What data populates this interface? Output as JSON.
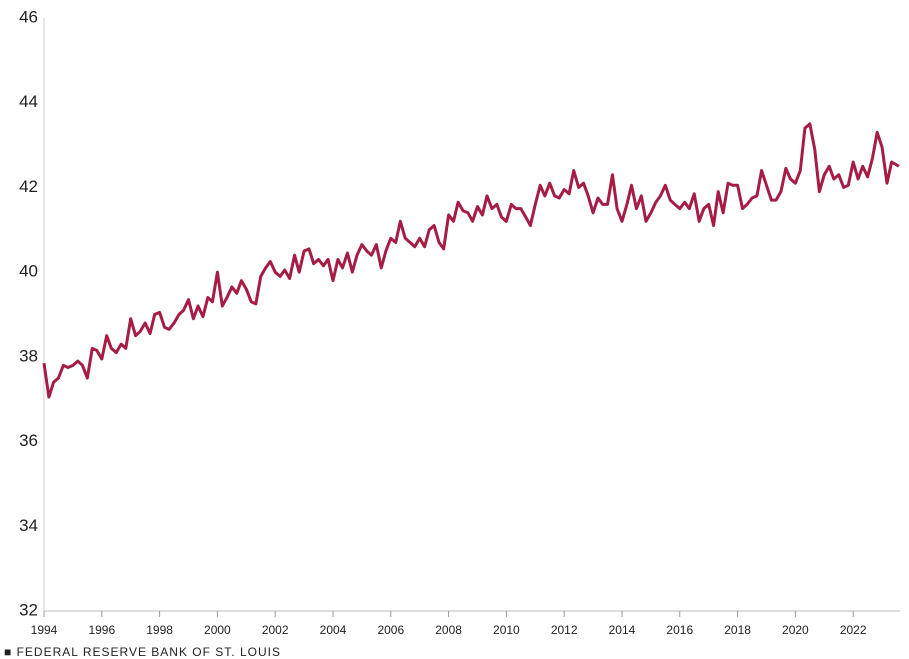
{
  "chart_data": {
    "type": "line",
    "source": "■ FEDERAL RESERVE BANK OF ST. LOUIS",
    "xlim": [
      1994,
      2023.62
    ],
    "xticks": [
      1994,
      1996,
      1998,
      2000,
      2002,
      2004,
      2006,
      2008,
      2010,
      2012,
      2014,
      2016,
      2018,
      2020,
      2022
    ],
    "ylim": [
      32,
      46
    ],
    "yticks": [
      32,
      34,
      36,
      38,
      40,
      42,
      44,
      46
    ],
    "grid": false,
    "series": [
      {
        "color": "#a51c45",
        "x": [
          1994,
          1994.17,
          1994.33,
          1994.5,
          1994.67,
          1994.83,
          1995,
          1995.17,
          1995.33,
          1995.5,
          1995.67,
          1995.83,
          1996,
          1996.17,
          1996.33,
          1996.5,
          1996.67,
          1996.83,
          1997,
          1997.17,
          1997.33,
          1997.5,
          1997.67,
          1997.83,
          1998,
          1998.17,
          1998.33,
          1998.5,
          1998.67,
          1998.83,
          1999,
          1999.17,
          1999.33,
          1999.5,
          1999.67,
          1999.83,
          2000,
          2000.17,
          2000.33,
          2000.5,
          2000.67,
          2000.83,
          2001,
          2001.17,
          2001.33,
          2001.5,
          2001.67,
          2001.83,
          2002,
          2002.17,
          2002.33,
          2002.5,
          2002.67,
          2002.83,
          2003,
          2003.17,
          2003.33,
          2003.5,
          2003.67,
          2003.83,
          2004,
          2004.17,
          2004.33,
          2004.5,
          2004.67,
          2004.83,
          2005,
          2005.17,
          2005.33,
          2005.5,
          2005.67,
          2005.83,
          2006,
          2006.17,
          2006.33,
          2006.5,
          2006.67,
          2006.83,
          2007,
          2007.17,
          2007.33,
          2007.5,
          2007.67,
          2007.83,
          2008,
          2008.17,
          2008.33,
          2008.5,
          2008.67,
          2008.83,
          2009,
          2009.17,
          2009.33,
          2009.5,
          2009.67,
          2009.83,
          2010,
          2010.17,
          2010.33,
          2010.5,
          2010.67,
          2010.83,
          2011,
          2011.17,
          2011.33,
          2011.5,
          2011.67,
          2011.83,
          2012,
          2012.17,
          2012.33,
          2012.5,
          2012.67,
          2012.83,
          2013,
          2013.17,
          2013.33,
          2013.5,
          2013.67,
          2013.83,
          2014,
          2014.17,
          2014.33,
          2014.5,
          2014.67,
          2014.83,
          2015,
          2015.17,
          2015.33,
          2015.5,
          2015.67,
          2015.83,
          2016,
          2016.17,
          2016.33,
          2016.5,
          2016.67,
          2016.83,
          2017,
          2017.17,
          2017.33,
          2017.5,
          2017.67,
          2017.83,
          2018,
          2018.17,
          2018.33,
          2018.5,
          2018.67,
          2018.83,
          2019,
          2019.17,
          2019.33,
          2019.5,
          2019.67,
          2019.83,
          2020,
          2020.17,
          2020.33,
          2020.5,
          2020.67,
          2020.83,
          2021,
          2021.17,
          2021.33,
          2021.5,
          2021.67,
          2021.83,
          2022,
          2022.17,
          2022.33,
          2022.5,
          2022.67,
          2022.83,
          2023,
          2023.17,
          2023.33,
          2023.58
        ],
        "values": [
          37.85,
          37.05,
          37.4,
          37.5,
          37.8,
          37.75,
          37.8,
          37.9,
          37.8,
          37.5,
          38.2,
          38.15,
          37.95,
          38.5,
          38.2,
          38.1,
          38.3,
          38.2,
          38.9,
          38.5,
          38.6,
          38.8,
          38.55,
          39.0,
          39.05,
          38.7,
          38.65,
          38.8,
          39.0,
          39.1,
          39.35,
          38.9,
          39.2,
          38.95,
          39.4,
          39.3,
          40.0,
          39.2,
          39.4,
          39.65,
          39.5,
          39.8,
          39.6,
          39.3,
          39.25,
          39.9,
          40.1,
          40.25,
          40.0,
          39.9,
          40.05,
          39.85,
          40.4,
          40.0,
          40.5,
          40.55,
          40.2,
          40.3,
          40.15,
          40.3,
          39.8,
          40.3,
          40.1,
          40.45,
          40.0,
          40.4,
          40.65,
          40.5,
          40.4,
          40.65,
          40.1,
          40.5,
          40.8,
          40.7,
          41.2,
          40.8,
          40.7,
          40.6,
          40.8,
          40.6,
          41.0,
          41.1,
          40.7,
          40.55,
          41.35,
          41.2,
          41.65,
          41.45,
          41.4,
          41.2,
          41.55,
          41.35,
          41.8,
          41.5,
          41.6,
          41.3,
          41.2,
          41.6,
          41.5,
          41.5,
          41.3,
          41.1,
          41.6,
          42.05,
          41.8,
          42.1,
          41.8,
          41.75,
          41.95,
          41.85,
          42.4,
          42.0,
          42.1,
          41.8,
          41.4,
          41.75,
          41.6,
          41.6,
          42.3,
          41.5,
          41.2,
          41.6,
          42.05,
          41.5,
          41.8,
          41.2,
          41.4,
          41.65,
          41.8,
          42.05,
          41.7,
          41.6,
          41.5,
          41.65,
          41.5,
          41.85,
          41.2,
          41.5,
          41.6,
          41.1,
          41.9,
          41.4,
          42.1,
          42.05,
          42.05,
          41.5,
          41.6,
          41.75,
          41.8,
          42.4,
          42.05,
          41.7,
          41.7,
          41.9,
          42.45,
          42.2,
          42.1,
          42.4,
          43.4,
          43.5,
          42.9,
          41.9,
          42.3,
          42.5,
          42.2,
          42.3,
          42.0,
          42.05,
          42.6,
          42.2,
          42.5,
          42.25,
          42.7,
          43.3,
          42.95,
          42.1,
          42.6,
          42.5
        ]
      }
    ]
  }
}
